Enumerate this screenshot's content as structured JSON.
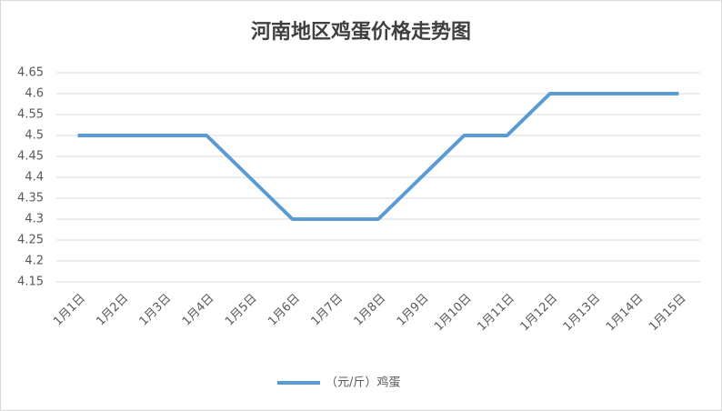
{
  "chart_data": {
    "type": "line",
    "title": "河南地区鸡蛋价格走势图",
    "categories": [
      "1月1日",
      "1月2日",
      "1月3日",
      "1月4日",
      "1月5日",
      "1月6日",
      "1月7日",
      "1月8日",
      "1月9日",
      "1月10日",
      "1月11日",
      "1月12日",
      "1月13日",
      "1月14日",
      "1月15日"
    ],
    "series": [
      {
        "name": "（元/斤）鸡蛋",
        "color": "#5b9bd5",
        "values": [
          4.5,
          4.5,
          4.5,
          4.5,
          4.4,
          4.3,
          4.3,
          4.3,
          4.4,
          4.5,
          4.5,
          4.6,
          4.6,
          4.6,
          4.6
        ]
      }
    ],
    "ylim": [
      4.15,
      4.65
    ],
    "yticks": [
      4.15,
      4.2,
      4.25,
      4.3,
      4.35,
      4.4,
      4.45,
      4.5,
      4.55,
      4.6,
      4.65
    ],
    "grid": true,
    "legend": "bottom"
  }
}
